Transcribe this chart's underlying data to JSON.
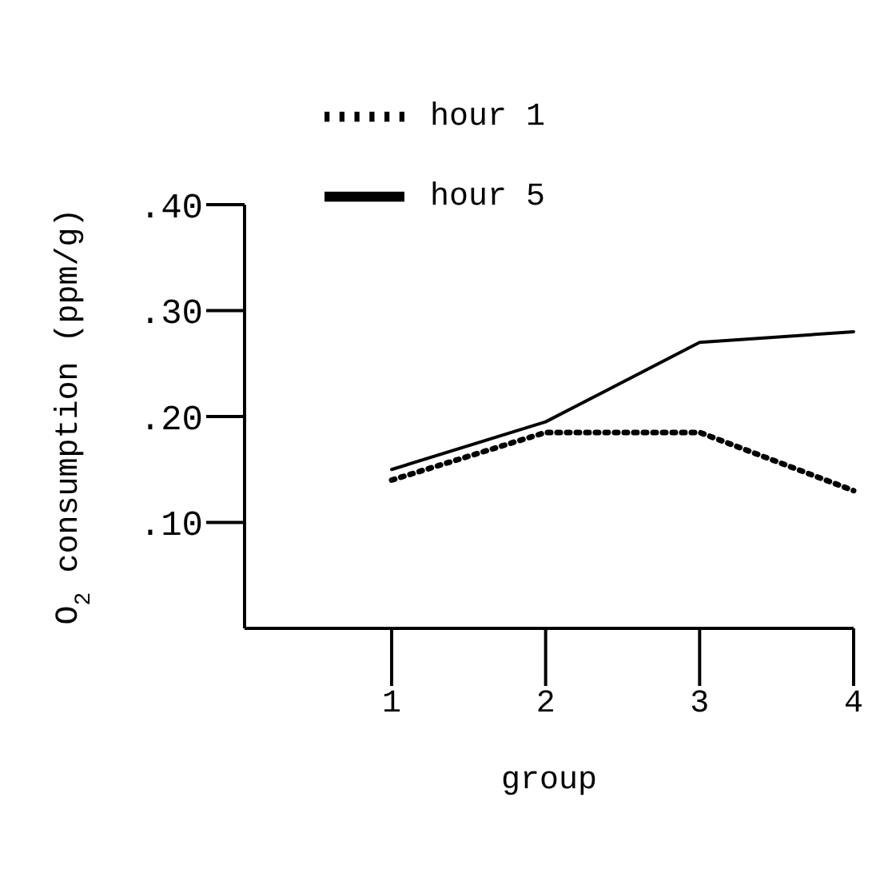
{
  "chart_data": {
    "type": "line",
    "xlabel": "group",
    "ylabel": "O$_{2}$ consumption (ppm/g)",
    "categories": [
      "1",
      "2",
      "3",
      "4"
    ],
    "series": [
      {
        "name": "hour 1",
        "color": "#000000",
        "line_style": "dotted",
        "values": [
          0.14,
          0.185,
          0.185,
          0.13
        ]
      },
      {
        "name": "hour 5",
        "color": "#000000",
        "line_style": "solid",
        "values": [
          0.15,
          0.195,
          0.27,
          0.28
        ]
      }
    ],
    "ylim": [
      0,
      0.4
    ],
    "yticks": [
      {
        "value": 0.1,
        "label": ".10"
      },
      {
        "value": 0.2,
        "label": ".20"
      },
      {
        "value": 0.3,
        "label": ".30"
      },
      {
        "value": 0.4,
        "label": ".40"
      }
    ],
    "grid": false,
    "legend": "top left",
    "marker": "none"
  }
}
